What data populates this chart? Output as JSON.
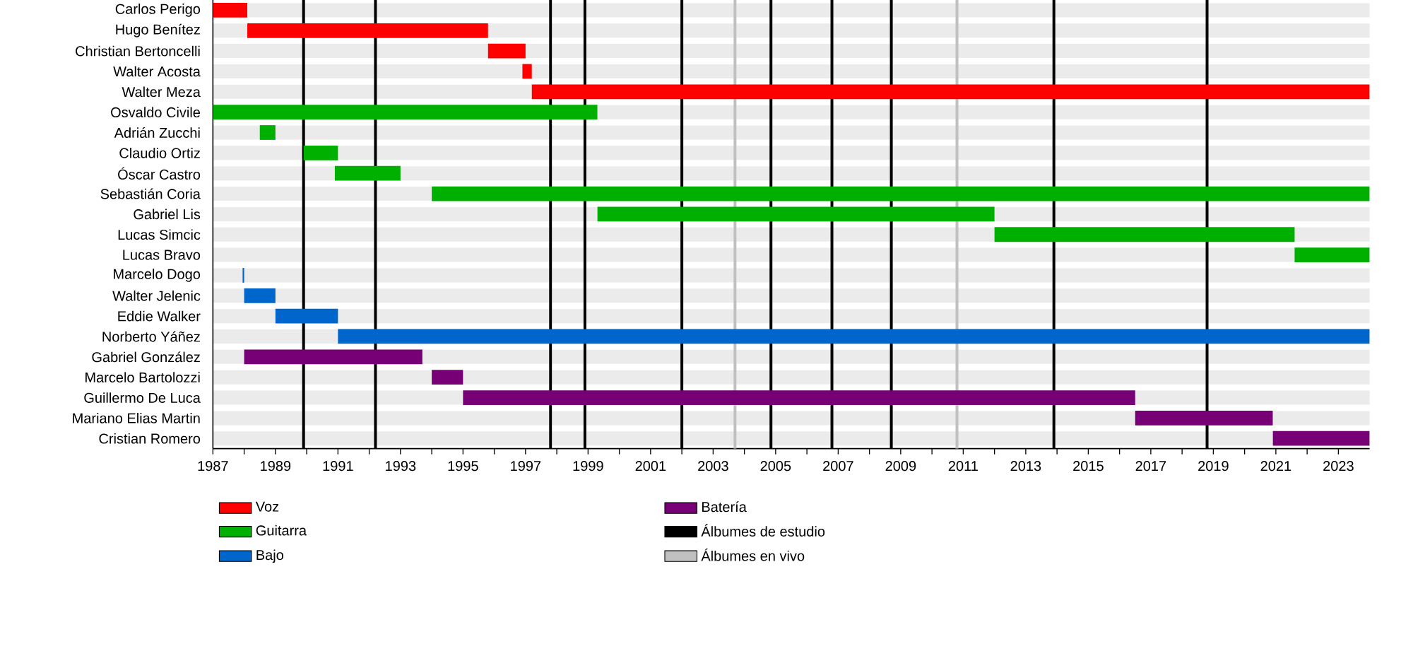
{
  "chart_data": {
    "type": "bar",
    "orientation": "horizontal",
    "categories": [
      "Carlos Perigo",
      "Hugo Benítez",
      "Christian Bertoncelli",
      "Walter Acosta",
      "Walter Meza",
      "Osvaldo Civile",
      "Adrián Zucchi",
      "Claudio Ortiz",
      "Óscar Castro",
      "Sebastián Coria",
      "Gabriel Lis",
      "Lucas Simcic",
      "Lucas Bravo",
      "Marcelo Dogo",
      "Walter Jelenic",
      "Eddie Walker",
      "Norberto Yáñez",
      "Gabriel González",
      "Marcelo Bartolozzi",
      "Guillermo De Luca",
      "Mariano Elias Martin",
      "Cristian Romero"
    ],
    "series": [
      {
        "name": "Voz",
        "color": "#ff0000",
        "base": [
          1987,
          1988.1,
          1995.8,
          1996.9,
          1997.2,
          null,
          null,
          null,
          null,
          null,
          null,
          null,
          null,
          null,
          null,
          null,
          null,
          null,
          null,
          null,
          null,
          null
        ],
        "values": [
          1.1,
          7.7,
          1.2,
          0.3,
          26.8,
          null,
          null,
          null,
          null,
          null,
          null,
          null,
          null,
          null,
          null,
          null,
          null,
          null,
          null,
          null,
          null,
          null
        ]
      },
      {
        "name": "Guitarra",
        "color": "#00b000",
        "base": [
          null,
          null,
          null,
          null,
          null,
          1987,
          1988.5,
          1989.9,
          1990.9,
          1994.0,
          1999.3,
          2012.0,
          2021.6,
          null,
          null,
          null,
          null,
          null,
          null,
          null,
          null,
          null
        ],
        "values": [
          null,
          null,
          null,
          null,
          null,
          12.3,
          0.5,
          1.1,
          2.1,
          30.0,
          12.7,
          9.6,
          2.4,
          null,
          null,
          null,
          null,
          null,
          null,
          null,
          null,
          null
        ]
      },
      {
        "name": "Bajo",
        "color": "#0066cc",
        "base": [
          null,
          null,
          null,
          null,
          null,
          null,
          null,
          null,
          null,
          null,
          null,
          null,
          null,
          1987.95,
          1988.0,
          1989.0,
          1991.0,
          null,
          null,
          null,
          null,
          null
        ],
        "values": [
          null,
          null,
          null,
          null,
          null,
          null,
          null,
          null,
          null,
          null,
          null,
          null,
          null,
          0.05,
          1.0,
          2.0,
          33.0,
          null,
          null,
          null,
          null,
          null
        ]
      },
      {
        "name": "Batería",
        "color": "#770077",
        "base": [
          null,
          null,
          null,
          null,
          null,
          null,
          null,
          null,
          null,
          null,
          null,
          null,
          null,
          null,
          null,
          null,
          null,
          1988.0,
          1994.0,
          1995.0,
          2016.5,
          2020.9
        ],
        "values": [
          null,
          null,
          null,
          null,
          null,
          null,
          null,
          null,
          null,
          null,
          null,
          null,
          null,
          null,
          null,
          null,
          null,
          5.7,
          1.0,
          21.5,
          4.4,
          3.1
        ]
      }
    ],
    "xlim": [
      1987,
      2024
    ],
    "xticks": [
      1987,
      {
        "value": 1988,
        "label": null
      },
      1989,
      {
        "value": 1990,
        "label": null
      },
      1991,
      {
        "value": 1992,
        "label": null
      },
      1993,
      {
        "value": 1994,
        "label": null
      },
      1995,
      {
        "value": 1996,
        "label": null
      },
      1997,
      {
        "value": 1998,
        "label": null
      },
      1999,
      {
        "value": 2000,
        "label": null
      },
      2001,
      {
        "value": 2002,
        "label": null
      },
      2003,
      {
        "value": 2004,
        "label": null
      },
      2005,
      {
        "value": 2006,
        "label": null
      },
      2007,
      {
        "value": 2008,
        "label": null
      },
      2009,
      {
        "value": 2010,
        "label": null
      },
      2011,
      {
        "value": 2012,
        "label": null
      },
      2013,
      {
        "value": 2014,
        "label": null
      },
      2015,
      {
        "value": 2016,
        "label": null
      },
      2017,
      {
        "value": 2018,
        "label": null
      },
      2019,
      {
        "value": 2020,
        "label": null
      },
      2021,
      {
        "value": 2022,
        "label": null
      },
      2023
    ],
    "ref_lines": [
      {
        "axis": "x",
        "value": 1989.9,
        "color": "#000000",
        "label": "Álbumes de estudio"
      },
      {
        "axis": "x",
        "value": 1992.2,
        "color": "#000000"
      },
      {
        "axis": "x",
        "value": 1997.8,
        "color": "#000000"
      },
      {
        "axis": "x",
        "value": 1998.9,
        "color": "#000000"
      },
      {
        "axis": "x",
        "value": 2002.0,
        "color": "#000000"
      },
      {
        "axis": "x",
        "value": 2004.85,
        "color": "#000000"
      },
      {
        "axis": "x",
        "value": 2006.8,
        "color": "#000000"
      },
      {
        "axis": "x",
        "value": 2008.7,
        "color": "#000000"
      },
      {
        "axis": "x",
        "value": 2013.9,
        "color": "#000000"
      },
      {
        "axis": "x",
        "value": 2018.8,
        "color": "#000000"
      },
      {
        "axis": "x",
        "value": 2003.7,
        "color": "#c0c0c0",
        "label": "Álbumes en vivo"
      },
      {
        "axis": "x",
        "value": 2010.8,
        "color": "#c0c0c0"
      }
    ],
    "grid": "y",
    "legend": "bottom"
  }
}
